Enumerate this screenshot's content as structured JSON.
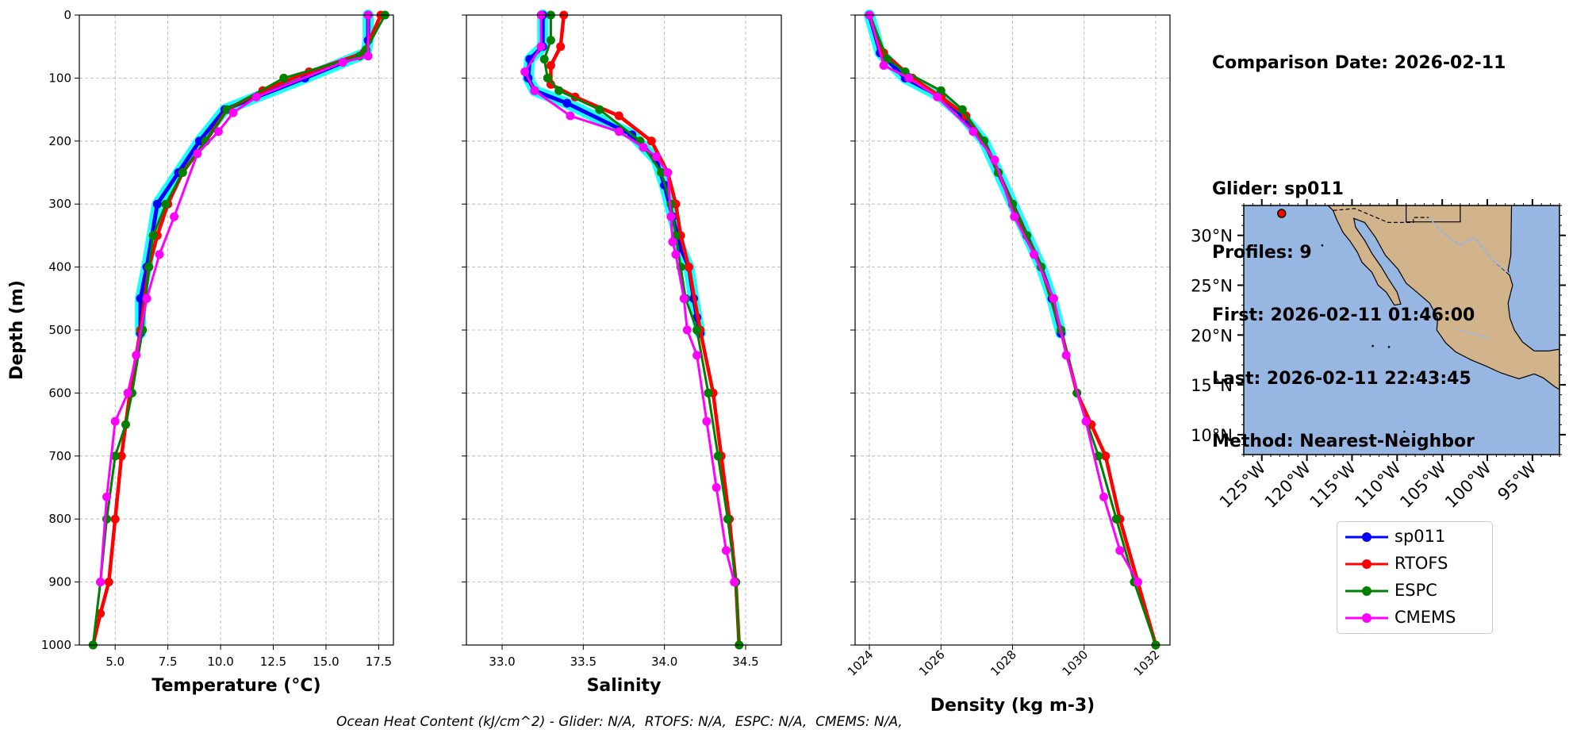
{
  "info": {
    "comparison_date": "Comparison Date: 2026-02-11",
    "glider": "Glider: sp011",
    "profiles": "Profiles: 9",
    "first": "First: 2026-02-11 01:46:00",
    "last": "Last: 2026-02-11 22:43:45",
    "method": "Method: Nearest-Neighbor"
  },
  "footer": {
    "ohc": "Ocean Heat Content (kJ/cm^2) - Glider: N/A,  RTOFS: N/A,  ESPC: N/A,  CMEMS: N/A,"
  },
  "legend": [
    {
      "name": "sp011",
      "color": "#0000ff"
    },
    {
      "name": "RTOFS",
      "color": "#ff0000"
    },
    {
      "name": "ESPC",
      "color": "#008000"
    },
    {
      "name": "CMEMS",
      "color": "#ff00ff"
    }
  ],
  "colors": {
    "sp011": "#0000ff",
    "sp011_raw": "#00ffff",
    "RTOFS": "#ff0000",
    "ESPC": "#008000",
    "CMEMS": "#ff00ff",
    "ocean": "#97b6e1",
    "land": "#d2b48c",
    "grid": "#b0b0b0"
  },
  "chart_data": [
    {
      "type": "line",
      "xlabel": "Temperature (°C)",
      "ylabel": "Depth (m)",
      "xlim": [
        3.3,
        18.2
      ],
      "ylim": [
        1000,
        0
      ],
      "xticks": [
        "5.0",
        "7.5",
        "10.0",
        "12.5",
        "15.0",
        "17.5"
      ],
      "xtick_values": [
        5.0,
        7.5,
        10.0,
        12.5,
        15.0,
        17.5
      ],
      "yticks": [
        0,
        100,
        200,
        300,
        400,
        500,
        600,
        700,
        800,
        900,
        1000
      ],
      "grid": true,
      "series": [
        {
          "name": "sp011",
          "x": [
            17.0,
            17.0,
            16.9,
            14.0,
            10.2,
            9.0,
            8.0,
            7.0,
            6.5,
            6.2,
            6.2
          ],
          "y": [
            0,
            40,
            60,
            100,
            150,
            200,
            250,
            300,
            400,
            450,
            505
          ]
        },
        {
          "name": "RTOFS",
          "x": [
            17.6,
            16.8,
            14.2,
            12.0,
            10.3,
            9.3,
            8.2,
            7.5,
            7.0,
            6.6,
            6.2,
            5.7,
            5.3,
            5.0,
            4.7,
            4.3,
            3.95
          ],
          "y": [
            0,
            60,
            90,
            120,
            150,
            200,
            250,
            300,
            350,
            400,
            500,
            600,
            700,
            800,
            900,
            950,
            1000
          ]
        },
        {
          "name": "ESPC",
          "x": [
            17.8,
            16.9,
            16.6,
            13.0,
            10.3,
            9.3,
            8.2,
            7.4,
            6.8,
            6.6,
            6.3,
            5.8,
            5.5,
            5.0,
            4.6,
            4.3,
            3.95
          ],
          "y": [
            0,
            55,
            65,
            100,
            150,
            200,
            250,
            300,
            350,
            400,
            500,
            600,
            650,
            700,
            800,
            900,
            1000
          ]
        },
        {
          "name": "CMEMS",
          "x": [
            17.0,
            17.0,
            15.8,
            11.7,
            10.6,
            9.9,
            8.9,
            7.8,
            7.1,
            6.5,
            6.0,
            5.6,
            5.0,
            4.6,
            4.3
          ],
          "y": [
            0,
            65,
            75,
            130,
            155,
            185,
            220,
            320,
            380,
            450,
            540,
            600,
            645,
            765,
            900
          ]
        }
      ]
    },
    {
      "type": "line",
      "xlabel": "Salinity",
      "xlim": [
        32.78,
        34.72
      ],
      "ylim": [
        1000,
        0
      ],
      "xticks": [
        "33.0",
        "33.5",
        "34.0",
        "34.5"
      ],
      "xtick_values": [
        33.0,
        33.5,
        34.0,
        34.5
      ],
      "yticks": [
        0,
        100,
        200,
        300,
        400,
        500,
        600,
        700,
        800,
        900,
        1000
      ],
      "grid": true,
      "series": [
        {
          "name": "sp011",
          "x": [
            33.25,
            33.25,
            33.17,
            33.16,
            33.2,
            33.4,
            33.8,
            33.95,
            34.0,
            34.05,
            34.1,
            34.15,
            34.18,
            34.2,
            34.22
          ],
          "y": [
            0,
            50,
            70,
            100,
            120,
            140,
            190,
            230,
            270,
            320,
            370,
            400,
            450,
            480,
            505
          ]
        },
        {
          "name": "RTOFS",
          "x": [
            33.38,
            33.36,
            33.3,
            33.3,
            33.45,
            33.72,
            33.92,
            34.02,
            34.07,
            34.1,
            34.15,
            34.22,
            34.3,
            34.35,
            34.4,
            34.44,
            34.46
          ],
          "y": [
            0,
            50,
            80,
            110,
            130,
            160,
            200,
            250,
            300,
            350,
            400,
            500,
            600,
            700,
            800,
            900,
            1000
          ]
        },
        {
          "name": "ESPC",
          "x": [
            33.3,
            33.3,
            33.26,
            33.28,
            33.35,
            33.6,
            33.85,
            33.98,
            34.04,
            34.07,
            34.1,
            34.13,
            34.2,
            34.27,
            34.33,
            34.39,
            34.44,
            34.46
          ],
          "y": [
            0,
            40,
            70,
            100,
            120,
            150,
            200,
            250,
            300,
            350,
            400,
            450,
            500,
            600,
            700,
            800,
            900,
            1000
          ]
        },
        {
          "name": "CMEMS",
          "x": [
            33.24,
            33.24,
            33.14,
            33.2,
            33.42,
            33.72,
            33.87,
            33.95,
            34.02,
            34.04,
            34.05,
            34.07,
            34.12,
            34.14,
            34.2,
            34.26,
            34.32,
            34.38,
            34.43
          ],
          "y": [
            0,
            50,
            90,
            120,
            160,
            185,
            210,
            225,
            250,
            320,
            360,
            380,
            450,
            500,
            540,
            645,
            750,
            850,
            900
          ]
        }
      ]
    },
    {
      "type": "line",
      "xlabel": "Density (kg m-3)",
      "xlim": [
        1023.6,
        1032.4
      ],
      "ylim": [
        1000,
        0
      ],
      "xticks": [
        "1024",
        "1026",
        "1028",
        "1030",
        "1032"
      ],
      "xtick_values": [
        1024,
        1026,
        1028,
        1030,
        1032
      ],
      "yticks": [
        0,
        100,
        200,
        300,
        400,
        500,
        600,
        700,
        800,
        900,
        1000
      ],
      "grid": true,
      "series": [
        {
          "name": "sp011",
          "x": [
            1024.0,
            1024.3,
            1025.0,
            1026.0,
            1026.6,
            1027.2,
            1027.6,
            1028.0,
            1028.4,
            1028.8,
            1029.1,
            1029.35
          ],
          "y": [
            0,
            60,
            100,
            130,
            160,
            200,
            250,
            300,
            350,
            400,
            450,
            505
          ]
        },
        {
          "name": "RTOFS",
          "x": [
            1024.0,
            1024.4,
            1025.2,
            1026.0,
            1026.7,
            1027.2,
            1027.6,
            1028.0,
            1028.4,
            1028.8,
            1029.35,
            1029.8,
            1030.2,
            1030.6,
            1031.0,
            1031.5,
            1032.0
          ],
          "y": [
            0,
            60,
            100,
            130,
            160,
            200,
            250,
            300,
            350,
            400,
            500,
            600,
            650,
            700,
            800,
            900,
            1000
          ]
        },
        {
          "name": "ESPC",
          "x": [
            1024.0,
            1024.5,
            1025.0,
            1026.0,
            1026.6,
            1027.2,
            1027.6,
            1028.0,
            1028.4,
            1028.8,
            1029.35,
            1029.8,
            1030.4,
            1030.9,
            1031.4,
            1032.0
          ],
          "y": [
            0,
            70,
            90,
            120,
            150,
            200,
            250,
            300,
            350,
            400,
            500,
            600,
            700,
            800,
            900,
            1000
          ]
        },
        {
          "name": "CMEMS",
          "x": [
            1024.0,
            1024.4,
            1025.1,
            1025.9,
            1026.9,
            1027.5,
            1028.05,
            1028.6,
            1029.15,
            1029.5,
            1030.05,
            1030.55,
            1031.0,
            1031.5
          ],
          "y": [
            0,
            80,
            100,
            130,
            185,
            230,
            320,
            380,
            450,
            540,
            645,
            765,
            850,
            900
          ]
        }
      ]
    },
    {
      "type": "map",
      "lon_range": [
        -127,
        -92
      ],
      "lat_range": [
        8,
        33
      ],
      "xticks": [
        "125°W",
        "120°W",
        "115°W",
        "110°W",
        "105°W",
        "100°W",
        "95°W"
      ],
      "xtick_values": [
        -125,
        -120,
        -115,
        -110,
        -105,
        -100,
        -95
      ],
      "yticks": [
        "10°N",
        "15°N",
        "20°N",
        "25°N",
        "30°N"
      ],
      "ytick_values": [
        10,
        15,
        20,
        25,
        30
      ],
      "glider_position": {
        "lon": -122.8,
        "lat": 32.2
      }
    }
  ]
}
